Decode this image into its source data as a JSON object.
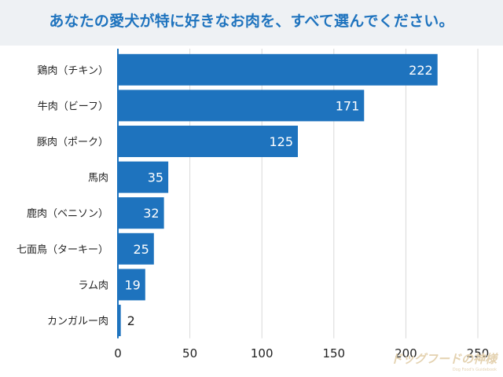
{
  "page": {
    "title": "あなたの愛犬が特に好きなお肉を、すべて選んでください。"
  },
  "colors": {
    "bar": "#1e73be",
    "grid": "#d9d9d9",
    "axis": "#1e73be",
    "title": "#1e73be",
    "label": "#222222",
    "value_inside": "#ffffff",
    "value_outside": "#222222"
  },
  "watermark": {
    "text": "ドッグフードの神様",
    "sub": "Dog Food's Guidebook"
  },
  "chart_data": {
    "type": "bar",
    "orientation": "horizontal",
    "title": "あなたの愛犬が特に好きなお肉を、すべて選んでください。",
    "categories": [
      "鶏肉（チキン）",
      "牛肉（ビーフ）",
      "豚肉（ポーク）",
      "馬肉",
      "鹿肉（ベニソン）",
      "七面鳥（ターキー）",
      "ラム肉",
      "カンガルー肉"
    ],
    "values": [
      222,
      171,
      125,
      35,
      32,
      25,
      19,
      2
    ],
    "xlabel": "",
    "ylabel": "",
    "xlim": [
      0,
      250
    ],
    "ticks": [
      0,
      50,
      100,
      150,
      200,
      250
    ],
    "grid": true
  }
}
